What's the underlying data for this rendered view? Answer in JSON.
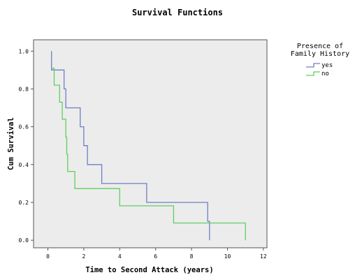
{
  "chart_data": {
    "type": "line",
    "title": "Survival Functions",
    "xlabel": "Time to Second Attack (years)",
    "ylabel": "Cum Survival",
    "xlim": [
      -0.8,
      12.2
    ],
    "ylim": [
      -0.04,
      1.06
    ],
    "xticks": [
      0,
      2,
      4,
      6,
      8,
      10,
      12
    ],
    "yticks": [
      0.0,
      0.2,
      0.4,
      0.6,
      0.8,
      1.0
    ],
    "xtick_labels": [
      "0",
      "2",
      "4",
      "6",
      "8",
      "10",
      "12"
    ],
    "ytick_labels": [
      "0.0",
      "0.2",
      "0.4",
      "0.6",
      "0.8",
      "1.0"
    ],
    "grid": false,
    "plot_background": "#ececec",
    "legend": {
      "title_lines": [
        "Presence of",
        "Family History"
      ],
      "position": "right",
      "entries": [
        {
          "name": "yes",
          "color": "#6f7fc4"
        },
        {
          "name": "no",
          "color": "#5fcf5f"
        }
      ]
    },
    "series": [
      {
        "name": "yes",
        "color": "#6f7fc4",
        "points": [
          [
            0.2,
            1.0
          ],
          [
            0.2,
            0.9
          ],
          [
            0.9,
            0.9
          ],
          [
            0.9,
            0.8
          ],
          [
            1.0,
            0.8
          ],
          [
            1.0,
            0.7
          ],
          [
            1.8,
            0.7
          ],
          [
            1.8,
            0.6
          ],
          [
            2.0,
            0.6
          ],
          [
            2.0,
            0.5
          ],
          [
            2.2,
            0.5
          ],
          [
            2.2,
            0.4
          ],
          [
            3.0,
            0.4
          ],
          [
            3.0,
            0.3
          ],
          [
            5.5,
            0.3
          ],
          [
            5.5,
            0.2
          ],
          [
            8.9,
            0.2
          ],
          [
            8.9,
            0.1
          ],
          [
            9.0,
            0.1
          ],
          [
            9.0,
            0.0
          ]
        ]
      },
      {
        "name": "no",
        "color": "#5fcf5f",
        "points": [
          [
            0.2,
            0.91
          ],
          [
            0.35,
            0.91
          ],
          [
            0.35,
            0.82
          ],
          [
            0.65,
            0.82
          ],
          [
            0.65,
            0.73
          ],
          [
            0.8,
            0.73
          ],
          [
            0.8,
            0.64
          ],
          [
            1.0,
            0.64
          ],
          [
            1.0,
            0.545
          ],
          [
            1.05,
            0.545
          ],
          [
            1.05,
            0.455
          ],
          [
            1.1,
            0.455
          ],
          [
            1.1,
            0.364
          ],
          [
            1.5,
            0.364
          ],
          [
            1.5,
            0.273
          ],
          [
            4.0,
            0.273
          ],
          [
            4.0,
            0.182
          ],
          [
            7.0,
            0.182
          ],
          [
            7.0,
            0.091
          ],
          [
            11.0,
            0.091
          ],
          [
            11.0,
            0.0
          ]
        ]
      }
    ]
  }
}
